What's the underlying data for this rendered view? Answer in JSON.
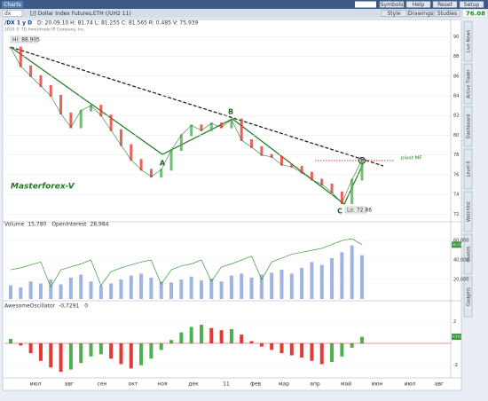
{
  "toolbar": {
    "tab": "Charts",
    "buttons": [
      "Symbols",
      "Help",
      "Reset",
      "Setup"
    ]
  },
  "symbolbar": {
    "symbol": "dx",
    "description": "[/] Dollar Index Futures,ETH (/UH2 11)",
    "buttons": [
      "Style",
      "Drawings",
      "Studies"
    ],
    "last": "76.08"
  },
  "info": {
    "symbol": "/DX 1 y D",
    "quote": "D: 20.09.10  H: 81.74  L: 81.255  C: 81.565  R: 0.485  V: 75,939",
    "copyright": "2010 © TD Ameritrade IP Company, Inc."
  },
  "sidebar": [
    "Live News",
    "Active Trader",
    "Dashboard",
    "Level II",
    "Watchlist",
    "Quotes",
    "Gadgets"
  ],
  "x_labels": [
    "июл",
    "авг",
    "сен",
    "окт",
    "ноя",
    "дек",
    "11",
    "фев",
    "мар",
    "апр",
    "май",
    "июн",
    "июл",
    "авг"
  ],
  "chart_data": [
    {
      "type": "line",
      "high_label": "Hi: 88.905",
      "low_label": "Lo: 72.86",
      "annotations": [
        "A",
        "B",
        "C",
        "Masterforex-V",
        "pivot MF"
      ],
      "series": [
        {
          "name": "/DX",
          "color": "#2e7d32",
          "values": [
            88.9,
            87.0,
            86.0,
            85.0,
            84.0,
            82.2,
            80.8,
            82.5,
            83.0,
            82.0,
            80.5,
            79.0,
            77.5,
            76.5,
            75.8,
            76.5,
            78.5,
            80.0,
            81.0,
            80.5,
            81.2,
            80.8,
            81.6,
            79.5,
            78.8,
            78.0,
            77.8,
            77.0,
            76.8,
            76.2,
            75.5,
            75.0,
            74.2,
            73.1,
            75.5,
            77.5
          ]
        }
      ],
      "ylim": [
        71.4,
        91.2
      ],
      "yticks": [
        90,
        88,
        86,
        84,
        82,
        80,
        78,
        76,
        74,
        72
      ],
      "grid": true
    },
    {
      "type": "bar",
      "last_label": "55,739",
      "series": [
        {
          "name": "Volume",
          "value_label": "15,780",
          "color": "#9fb4e0",
          "values": [
            14000,
            12000,
            18000,
            16000,
            20000,
            15000,
            22000,
            25000,
            18000,
            14000,
            16000,
            20000,
            24000,
            26000,
            22000,
            18000,
            17000,
            20000,
            23000,
            19000,
            21000,
            18000,
            24000,
            26000,
            22000,
            25000,
            27000,
            30000,
            26000,
            32000,
            38000,
            35000,
            42000,
            48000,
            55000,
            45000
          ]
        },
        {
          "name": "OpenInterest",
          "value_label": "28,984",
          "color": "#3a9a3a",
          "values": [
            30000,
            32000,
            35000,
            38000,
            12000,
            30000,
            33000,
            36000,
            40000,
            14000,
            28000,
            32000,
            35000,
            38000,
            40000,
            15000,
            30000,
            34000,
            36000,
            40000,
            18000,
            33000,
            36000,
            40000,
            44000,
            20000,
            38000,
            42000,
            46000,
            48000,
            50000,
            52000,
            56000,
            60000,
            62000,
            55739
          ]
        }
      ],
      "ylim": [
        0,
        72000
      ],
      "yticks": [
        {
          "value": 60000,
          "label": "60,000"
        },
        {
          "value": 40000,
          "label": "40,000"
        },
        {
          "value": 20000,
          "label": "20,000"
        }
      ]
    },
    {
      "type": "bar",
      "last_label": "0.5716",
      "zero_label": "0",
      "series": [
        {
          "name": "AwesomeOscillator",
          "value_label": "-0,7291",
          "up_color": "#4caf50",
          "down_color": "#e53935",
          "values": [
            0.4,
            -0.2,
            -0.9,
            -1.6,
            -2.2,
            -2.6,
            -2.4,
            -1.8,
            -1.2,
            -1.0,
            -1.4,
            -1.9,
            -2.3,
            -2.0,
            -1.4,
            -0.6,
            0.3,
            1.0,
            1.5,
            1.7,
            1.4,
            1.2,
            1.3,
            0.8,
            0.2,
            -0.3,
            -0.6,
            -0.9,
            -1.1,
            -1.3,
            -1.6,
            -1.9,
            -1.7,
            -1.2,
            -0.4,
            0.6
          ]
        }
      ],
      "ylim": [
        -3,
        3
      ],
      "yticks": [
        2,
        -2
      ]
    }
  ]
}
